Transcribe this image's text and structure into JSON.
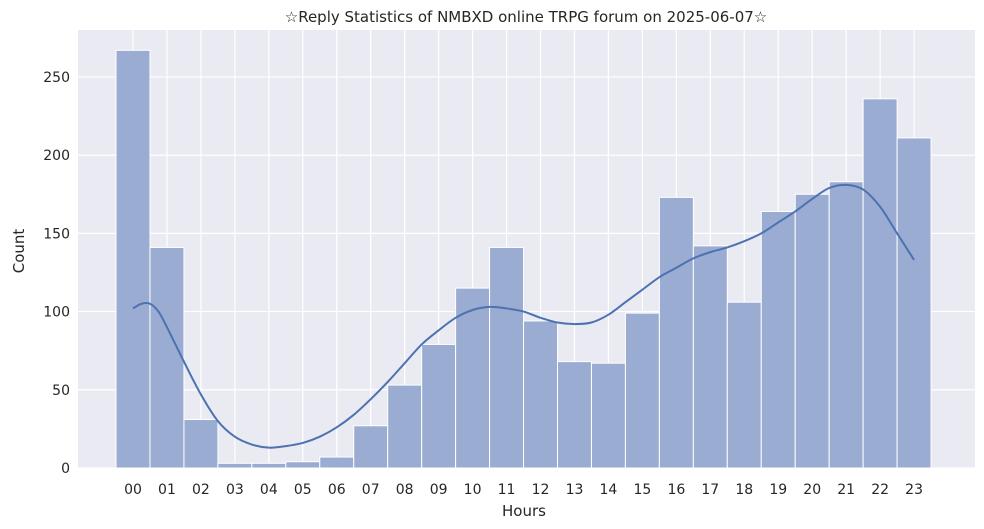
{
  "chart_data": {
    "type": "bar",
    "title": "☆Reply Statistics of NMBXD online TRPG forum on 2025-06-07☆",
    "xlabel": "Hours",
    "ylabel": "Count",
    "categories": [
      "00",
      "01",
      "02",
      "03",
      "04",
      "05",
      "06",
      "07",
      "08",
      "09",
      "10",
      "11",
      "12",
      "13",
      "14",
      "15",
      "16",
      "17",
      "18",
      "19",
      "20",
      "21",
      "22",
      "23"
    ],
    "values": [
      267,
      141,
      31,
      3,
      3,
      4,
      7,
      27,
      53,
      79,
      115,
      141,
      94,
      68,
      67,
      99,
      173,
      142,
      106,
      164,
      175,
      183,
      236,
      211
    ],
    "ylim": [
      0,
      280
    ],
    "yticks": [
      0,
      50,
      100,
      150,
      200,
      250
    ],
    "grid": true,
    "kde": {
      "x": [
        0,
        0.25,
        0.5,
        0.75,
        1,
        1.5,
        2,
        2.5,
        3,
        3.5,
        4,
        4.5,
        5,
        5.5,
        6,
        6.5,
        7,
        7.5,
        8,
        8.5,
        9,
        9.5,
        10,
        10.5,
        11,
        11.5,
        12,
        12.5,
        13,
        13.5,
        14,
        14.5,
        15,
        15.5,
        16,
        16.5,
        17,
        17.5,
        18,
        18.5,
        19,
        19.5,
        20,
        20.5,
        21,
        21.5,
        22,
        22.5,
        23
      ],
      "y": [
        102,
        105,
        105,
        100,
        90,
        68,
        47,
        30,
        20,
        15,
        13,
        14,
        16,
        20,
        26,
        34,
        44,
        55,
        67,
        79,
        88,
        96,
        101,
        103,
        102,
        100,
        96,
        93,
        92,
        93,
        98,
        106,
        114,
        122,
        128,
        134,
        138,
        141,
        145,
        150,
        157,
        164,
        172,
        179,
        181,
        178,
        167,
        150,
        133
      ]
    },
    "colors": {
      "bar_fill": "#9aacd1",
      "bar_edge": "#ffffff",
      "line": "#4c72b0",
      "plot_bg": "#eaeaf2",
      "grid": "#ffffff",
      "text": "#262626"
    }
  }
}
